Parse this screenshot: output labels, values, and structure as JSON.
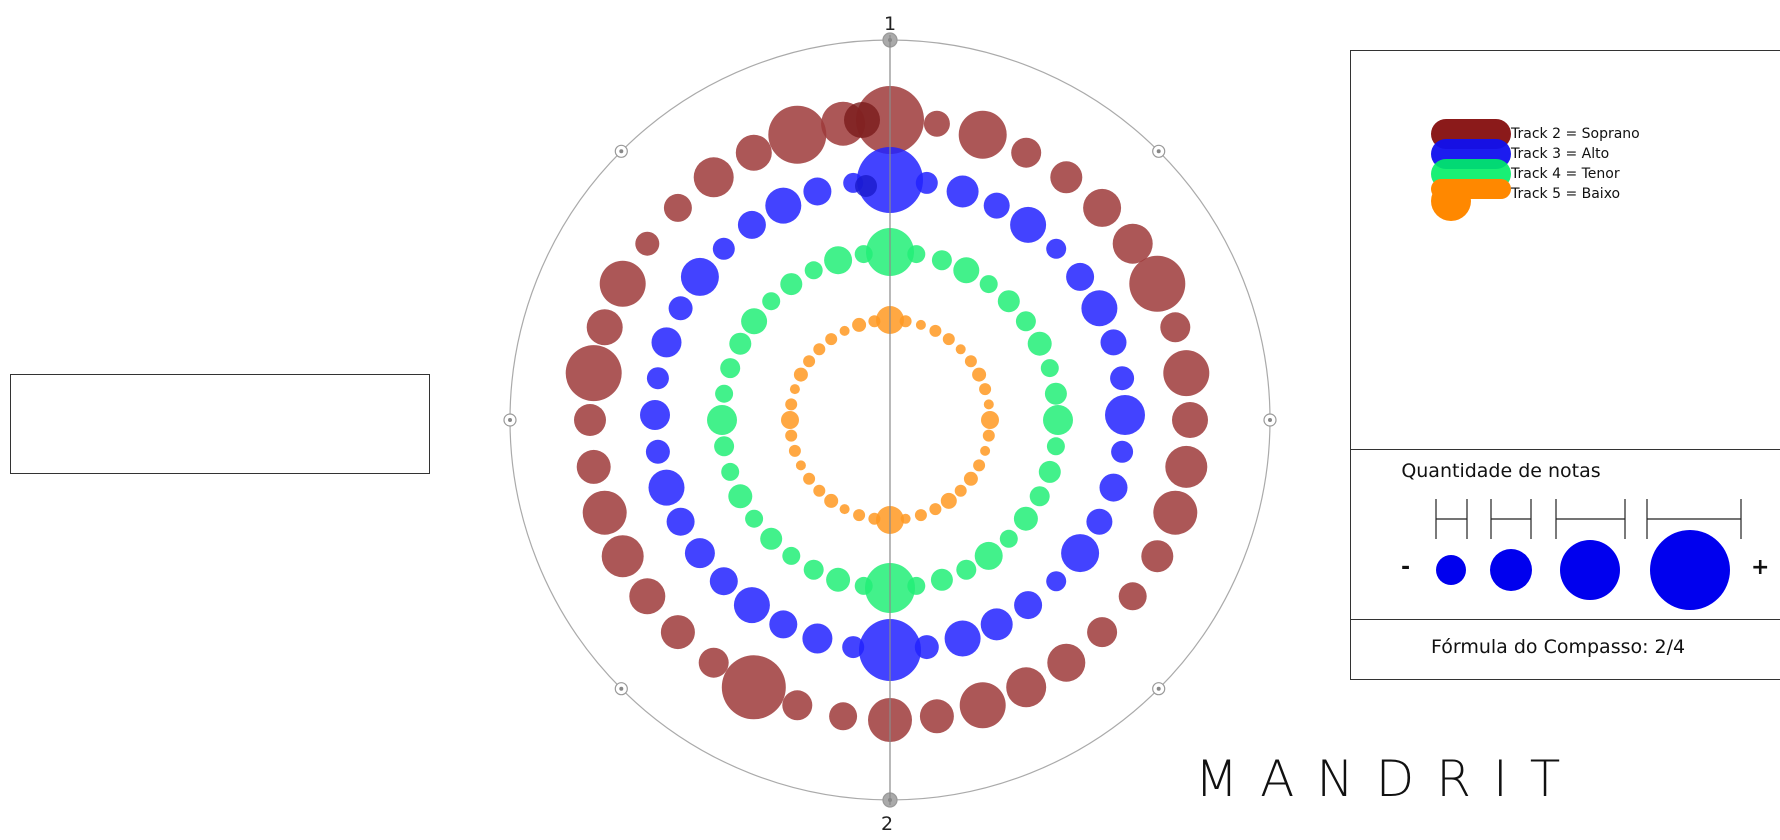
{
  "markers": {
    "top": "1",
    "bottom": "2"
  },
  "legend": [
    {
      "label": "Track 2 = Soprano",
      "color": "#8b1a1a"
    },
    {
      "label": "Track 3 = Alto",
      "color": "#1010ee"
    },
    {
      "label": "Track 4 = Tenor",
      "color": "#00ee66"
    },
    {
      "label": "Track 5 = Baixo",
      "color": "#ff8800"
    }
  ],
  "size_legend": {
    "title": "Quantidade de notas",
    "min_label": "-",
    "max_label": "+",
    "color": "#0000ee"
  },
  "formula": "Fórmula do Compasso: 2/4",
  "brand": "MANDRIT",
  "colors": {
    "soprano": "#9e3a3a",
    "alto": "#2222ff",
    "tenor": "#22ee77",
    "baixo": "#ff9922",
    "circle_line": "#aaaaaa"
  }
}
